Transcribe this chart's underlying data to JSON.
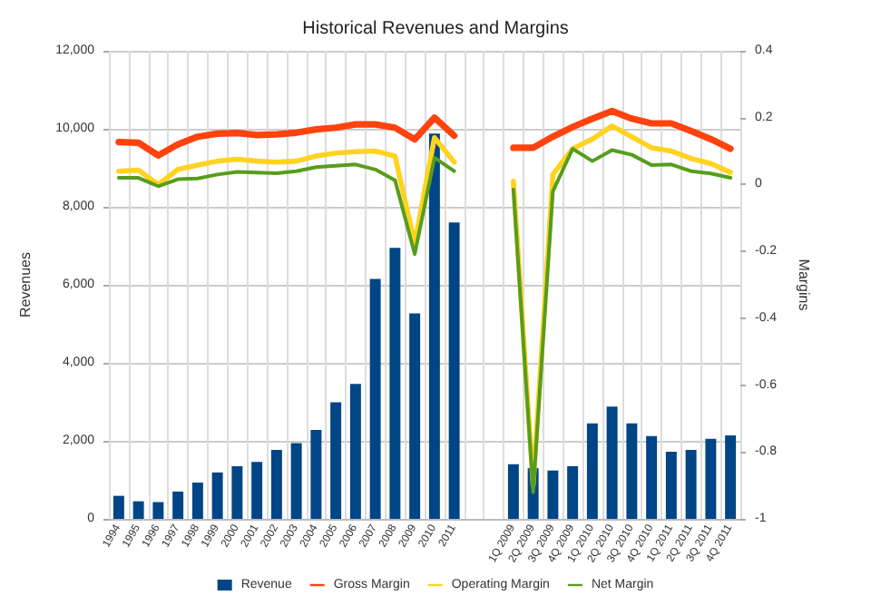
{
  "chart_data": {
    "type": "bar",
    "title": "Historical Revenues and Margins",
    "ylabel": "Revenues",
    "y2label": "Margins",
    "categories": [
      "1994",
      "1995",
      "1996",
      "1997",
      "1998",
      "1999",
      "2000",
      "2001",
      "2002",
      "2003",
      "2004",
      "2005",
      "2006",
      "2007",
      "2008",
      "2009",
      "2010",
      "2011",
      null,
      null,
      "1Q 2009",
      "2Q 2009",
      "3Q 2009",
      "4Q 2009",
      "1Q 2010",
      "2Q 2010",
      "3Q 2010",
      "4Q 2010",
      "1Q 2011",
      "2Q 2011",
      "3Q 2011",
      "4Q 2011"
    ],
    "series": [
      {
        "name": "Revenue",
        "color": "#004586",
        "values": [
          590,
          450,
          430,
          700,
          930,
          1190,
          1350,
          1460,
          1770,
          1940,
          2280,
          2990,
          3460,
          6150,
          6950,
          5270,
          9880,
          7600,
          null,
          null,
          1400,
          1300,
          1240,
          1350,
          2450,
          2880,
          2450,
          2120,
          1720,
          1770,
          2050,
          2140
        ]
      },
      {
        "name": "Gross Margin",
        "type": "line",
        "axis": "y2",
        "color": "#ff420e",
        "values": [
          0.127,
          0.125,
          0.087,
          0.12,
          0.143,
          0.152,
          0.154,
          0.148,
          0.15,
          0.155,
          0.165,
          0.17,
          0.18,
          0.18,
          0.17,
          0.135,
          0.2,
          0.146,
          null,
          null,
          0.11,
          0.11,
          0.143,
          0.172,
          0.197,
          0.22,
          0.197,
          0.183,
          0.183,
          0.16,
          0.136,
          0.107
        ]
      },
      {
        "name": "Operating Margin",
        "type": "line",
        "axis": "y2",
        "color": "#ffd320",
        "values": [
          0.04,
          0.043,
          0,
          0.045,
          0.058,
          0.07,
          0.076,
          0.07,
          0.067,
          0.07,
          0.085,
          0.094,
          0.098,
          0.1,
          0.085,
          -0.177,
          0.14,
          0.067,
          null,
          null,
          0.01,
          -0.9,
          0.03,
          0.107,
          0.136,
          0.175,
          0.143,
          0.11,
          0.1,
          0.078,
          0.063,
          0.036
        ]
      },
      {
        "name": "Net Margin",
        "type": "line",
        "axis": "y2",
        "color": "#579d1c",
        "values": [
          0.02,
          0.02,
          -0.005,
          0.016,
          0.018,
          0.03,
          0.038,
          0.036,
          0.034,
          0.04,
          0.052,
          0.056,
          0.06,
          0.045,
          0.013,
          -0.208,
          0.08,
          0.04,
          null,
          null,
          -0.015,
          -0.92,
          -0.02,
          0.107,
          0.07,
          0.103,
          0.089,
          0.058,
          0.06,
          0.04,
          0.033,
          0.02
        ]
      }
    ],
    "ylim": [
      0,
      12000
    ],
    "yticks": [
      0,
      {
        "value": 2000,
        "label": "2,000"
      },
      {
        "value": 4000,
        "label": "4,000"
      },
      {
        "value": 6000,
        "label": "6,000"
      },
      {
        "value": 8000,
        "label": "8,000"
      },
      {
        "value": 10000,
        "label": "10,000"
      },
      {
        "value": 12000,
        "label": "12,000"
      }
    ],
    "y2lim": [
      -1,
      0.4
    ],
    "y2ticks": [
      -1,
      -0.8,
      -0.6,
      -0.4,
      -0.2,
      0,
      0.2,
      0.4
    ],
    "grid": true,
    "legend": "bottom",
    "marker": "none",
    "line_style": "solid"
  }
}
